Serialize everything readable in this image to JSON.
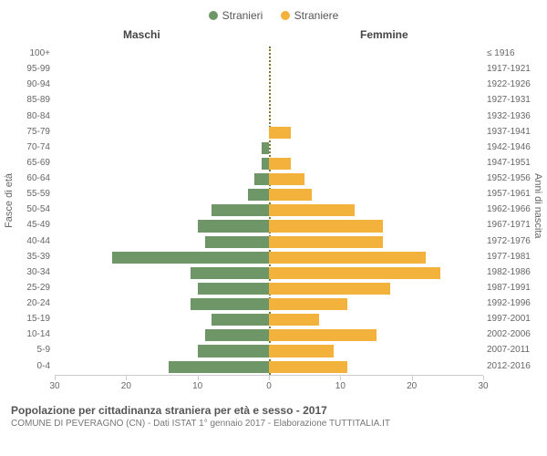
{
  "legend": {
    "male": {
      "label": "Stranieri",
      "color": "#6e9667"
    },
    "female": {
      "label": "Straniere",
      "color": "#f2b23c"
    }
  },
  "headers": {
    "male": "Maschi",
    "female": "Femmine"
  },
  "axis_left": "Fasce di età",
  "axis_right": "Anni di nascita",
  "title": "Popolazione per cittadinanza straniera per età e sesso - 2017",
  "subtitle": "COMUNE DI PEVERAGNO (CN) - Dati ISTAT 1° gennaio 2017 - Elaborazione TUTTITALIA.IT",
  "pyramid": {
    "type": "population-pyramid",
    "xlim": 30,
    "xticks": [
      30,
      20,
      10,
      0,
      10,
      20,
      30
    ],
    "bar_color_m": "#6e9667",
    "bar_color_f": "#f2b23c",
    "background_color": "#ffffff",
    "rows": [
      {
        "age": "100+",
        "birth": "≤ 1916",
        "m": 0,
        "f": 0
      },
      {
        "age": "95-99",
        "birth": "1917-1921",
        "m": 0,
        "f": 0
      },
      {
        "age": "90-94",
        "birth": "1922-1926",
        "m": 0,
        "f": 0
      },
      {
        "age": "85-89",
        "birth": "1927-1931",
        "m": 0,
        "f": 0
      },
      {
        "age": "80-84",
        "birth": "1932-1936",
        "m": 0,
        "f": 0
      },
      {
        "age": "75-79",
        "birth": "1937-1941",
        "m": 0,
        "f": 3
      },
      {
        "age": "70-74",
        "birth": "1942-1946",
        "m": 1,
        "f": 0
      },
      {
        "age": "65-69",
        "birth": "1947-1951",
        "m": 1,
        "f": 3
      },
      {
        "age": "60-64",
        "birth": "1952-1956",
        "m": 2,
        "f": 5
      },
      {
        "age": "55-59",
        "birth": "1957-1961",
        "m": 3,
        "f": 6
      },
      {
        "age": "50-54",
        "birth": "1962-1966",
        "m": 8,
        "f": 12
      },
      {
        "age": "45-49",
        "birth": "1967-1971",
        "m": 10,
        "f": 16
      },
      {
        "age": "40-44",
        "birth": "1972-1976",
        "m": 9,
        "f": 16
      },
      {
        "age": "35-39",
        "birth": "1977-1981",
        "m": 22,
        "f": 22
      },
      {
        "age": "30-34",
        "birth": "1982-1986",
        "m": 11,
        "f": 24
      },
      {
        "age": "25-29",
        "birth": "1987-1991",
        "m": 10,
        "f": 17
      },
      {
        "age": "20-24",
        "birth": "1992-1996",
        "m": 11,
        "f": 11
      },
      {
        "age": "15-19",
        "birth": "1997-2001",
        "m": 8,
        "f": 7
      },
      {
        "age": "10-14",
        "birth": "2002-2006",
        "m": 9,
        "f": 15
      },
      {
        "age": "5-9",
        "birth": "2007-2011",
        "m": 10,
        "f": 9
      },
      {
        "age": "0-4",
        "birth": "2012-2016",
        "m": 14,
        "f": 11
      }
    ]
  }
}
